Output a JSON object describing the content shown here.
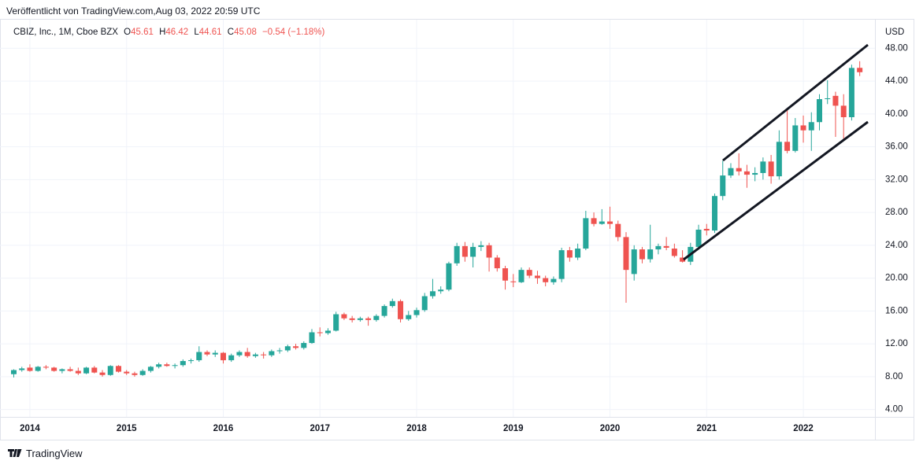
{
  "header": {
    "published": "Veröffentlicht von TradingView.com,Aug 03, 2022 20:59 UTC"
  },
  "legend": {
    "symbol": "CBIZ, Inc., 1M, Cboe BZX",
    "o_label": "O",
    "o": "45.61",
    "h_label": "H",
    "h": "46.42",
    "l_label": "L",
    "l": "44.61",
    "c_label": "C",
    "c": "45.08",
    "change": "−0.54 (−1.18%)"
  },
  "footer": {
    "brand": "TradingView"
  },
  "chart_data": {
    "type": "candlestick",
    "y_label": "USD",
    "up_color": "#26a69a",
    "down_color": "#ef5350",
    "grid": true,
    "ylim": [
      3.1,
      51.0
    ],
    "yticks": [
      {
        "value": 4,
        "label": "4.00"
      },
      {
        "value": 8,
        "label": "8.00"
      },
      {
        "value": 12,
        "label": "12.00"
      },
      {
        "value": 16,
        "label": "16.00"
      },
      {
        "value": 20,
        "label": "20.00"
      },
      {
        "value": 24,
        "label": "24.00"
      },
      {
        "value": 28,
        "label": "28.00"
      },
      {
        "value": 32,
        "label": "32.00"
      },
      {
        "value": 36,
        "label": "36.00"
      },
      {
        "value": 40,
        "label": "40.00"
      },
      {
        "value": 44,
        "label": "44.00"
      },
      {
        "value": 48,
        "label": "48.00"
      }
    ],
    "categories": [
      null,
      null,
      "2014",
      null,
      null,
      null,
      null,
      null,
      null,
      null,
      null,
      null,
      null,
      null,
      "2015",
      null,
      null,
      null,
      null,
      null,
      null,
      null,
      null,
      null,
      null,
      null,
      "2016",
      null,
      null,
      null,
      null,
      null,
      null,
      null,
      null,
      null,
      null,
      null,
      "2017",
      null,
      null,
      null,
      null,
      null,
      null,
      null,
      null,
      null,
      null,
      null,
      "2018",
      null,
      null,
      null,
      null,
      null,
      null,
      null,
      null,
      null,
      null,
      null,
      "2019",
      null,
      null,
      null,
      null,
      null,
      null,
      null,
      null,
      null,
      null,
      null,
      "2020",
      null,
      null,
      null,
      null,
      null,
      null,
      null,
      null,
      null,
      null,
      null,
      "2021",
      null,
      null,
      null,
      null,
      null,
      null,
      null,
      null,
      null,
      null,
      null,
      "2022",
      null,
      null,
      null,
      null,
      null,
      null,
      null
    ],
    "open": [
      8.3,
      8.8,
      9.1,
      8.7,
      9.2,
      9.1,
      8.7,
      8.9,
      8.7,
      8.4,
      9.1,
      8.5,
      8.2,
      9.3,
      8.6,
      8.4,
      8.2,
      8.7,
      9.2,
      9.5,
      9.3,
      9.4,
      9.9,
      10.0,
      11.0,
      10.7,
      10.9,
      10.0,
      10.6,
      11.0,
      10.5,
      10.7,
      10.6,
      11.1,
      11.2,
      11.7,
      11.5,
      12.1,
      13.4,
      13.3,
      13.6,
      15.6,
      15.1,
      14.9,
      15.1,
      14.9,
      15.4,
      16.6,
      17.2,
      15.0,
      15.5,
      16.1,
      17.8,
      18.4,
      18.6,
      21.8,
      23.9,
      22.6,
      23.8,
      24.0,
      22.5,
      21.2,
      19.6,
      19.5,
      21.0,
      20.3,
      20.0,
      19.5,
      19.9,
      23.4,
      22.5,
      23.6,
      27.3,
      26.6,
      26.9,
      26.6,
      25.0,
      20.5,
      23.5,
      22.3,
      23.5,
      23.9,
      23.6,
      22.5,
      22.0,
      23.8,
      26.0,
      25.8,
      30.0,
      32.5,
      33.4,
      33.0,
      32.6,
      32.8,
      34.2,
      32.4,
      36.6,
      35.5,
      38.6,
      38.0,
      39.0,
      41.8,
      42.2,
      41.0,
      39.6,
      45.61
    ],
    "high": [
      8.9,
      9.2,
      9.5,
      9.3,
      9.4,
      9.2,
      9.0,
      9.2,
      9.1,
      9.2,
      9.3,
      8.8,
      9.4,
      9.4,
      8.8,
      8.6,
      8.9,
      9.3,
      9.7,
      9.7,
      9.6,
      10.1,
      10.2,
      11.7,
      11.2,
      11.2,
      11.0,
      10.8,
      11.2,
      11.5,
      10.9,
      11.0,
      11.3,
      11.5,
      11.9,
      12.0,
      12.3,
      13.8,
      14.0,
      13.9,
      15.9,
      15.8,
      15.4,
      15.3,
      15.3,
      15.6,
      16.8,
      17.5,
      17.4,
      16.0,
      16.4,
      18.2,
      19.9,
      19.0,
      22.0,
      24.3,
      24.4,
      24.3,
      24.5,
      24.3,
      22.8,
      21.5,
      20.5,
      21.3,
      21.3,
      20.9,
      20.3,
      20.2,
      23.7,
      23.8,
      24.2,
      28.2,
      28.0,
      28.4,
      28.7,
      27.0,
      25.6,
      24.0,
      23.8,
      26.5,
      24.2,
      25.0,
      24.2,
      23.4,
      24.3,
      26.5,
      26.6,
      30.3,
      34.3,
      34.0,
      35.2,
      33.8,
      33.5,
      34.7,
      35.0,
      38.0,
      40.6,
      39.5,
      39.8,
      40.2,
      42.4,
      44.1,
      42.7,
      42.4,
      46.0,
      46.42
    ],
    "low": [
      7.9,
      8.6,
      8.6,
      8.6,
      8.9,
      8.6,
      8.4,
      8.6,
      8.2,
      8.3,
      8.4,
      8.0,
      8.1,
      8.5,
      8.2,
      8.0,
      8.1,
      8.5,
      9.0,
      9.2,
      9.0,
      9.2,
      9.6,
      9.8,
      10.5,
      10.4,
      9.6,
      9.8,
      10.4,
      10.3,
      10.3,
      10.2,
      10.4,
      10.8,
      11.0,
      11.3,
      11.3,
      12.0,
      12.9,
      13.1,
      13.5,
      14.9,
      14.6,
      14.7,
      14.2,
      14.7,
      15.2,
      16.4,
      14.6,
      14.8,
      15.2,
      15.9,
      17.5,
      18.1,
      18.4,
      21.5,
      22.0,
      21.3,
      23.3,
      20.8,
      20.8,
      18.6,
      18.9,
      19.4,
      20.0,
      19.3,
      19.0,
      19.2,
      19.5,
      22.0,
      22.2,
      23.4,
      26.3,
      26.5,
      26.0,
      24.5,
      17.0,
      19.7,
      21.8,
      21.9,
      22.9,
      23.4,
      22.5,
      21.9,
      21.6,
      23.5,
      25.2,
      25.5,
      29.5,
      32.2,
      32.5,
      31.0,
      31.8,
      32.0,
      31.5,
      32.0,
      35.2,
      35.3,
      36.5,
      35.5,
      38.0,
      41.2,
      37.2,
      36.9,
      39.2,
      44.61
    ],
    "close": [
      8.8,
      9.0,
      8.7,
      9.2,
      9.1,
      8.7,
      8.9,
      8.7,
      8.4,
      9.1,
      8.5,
      8.2,
      9.3,
      8.6,
      8.4,
      8.2,
      8.7,
      9.2,
      9.5,
      9.3,
      9.4,
      9.9,
      10.0,
      11.0,
      10.7,
      10.9,
      10.0,
      10.6,
      11.0,
      10.5,
      10.7,
      10.6,
      11.1,
      11.2,
      11.7,
      11.5,
      12.1,
      13.4,
      13.3,
      13.6,
      15.6,
      15.1,
      14.9,
      15.1,
      14.9,
      15.4,
      16.6,
      17.2,
      15.0,
      15.5,
      16.1,
      17.8,
      18.4,
      18.6,
      21.8,
      23.9,
      22.6,
      23.8,
      24.0,
      22.5,
      21.2,
      19.7,
      19.5,
      21.0,
      20.3,
      20.0,
      19.5,
      19.9,
      23.4,
      22.5,
      23.6,
      27.3,
      26.6,
      26.9,
      26.6,
      25.0,
      21.0,
      23.5,
      22.3,
      23.5,
      23.9,
      23.7,
      22.7,
      22.0,
      23.8,
      25.9,
      25.8,
      30.0,
      32.5,
      33.4,
      33.0,
      32.6,
      32.8,
      34.2,
      32.4,
      36.6,
      35.5,
      38.6,
      38.0,
      39.0,
      41.8,
      41.9,
      41.0,
      39.6,
      45.6,
      45.08
    ]
  }
}
